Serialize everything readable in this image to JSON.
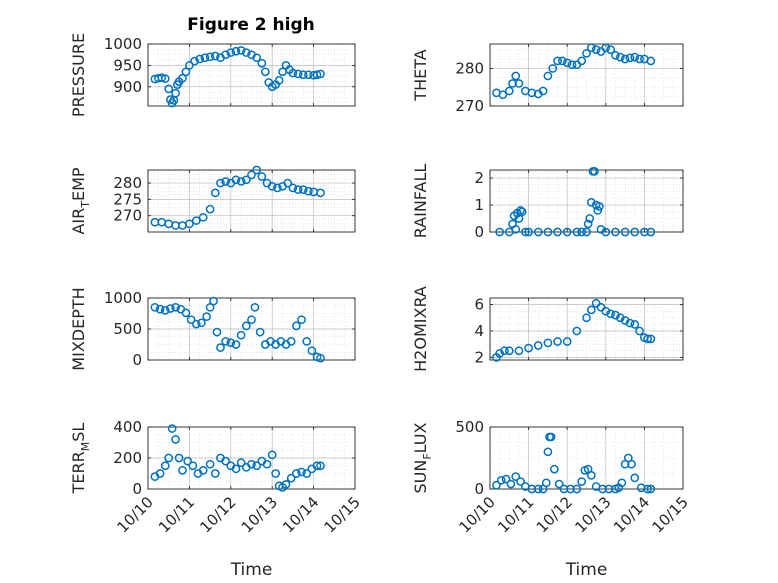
{
  "title": "Figure 2 high",
  "marker_color": "#0072BD",
  "chart_data": [
    {
      "type": "scatter",
      "ylabel": "PRESSURE",
      "xlim": [
        "10/10",
        "10/15"
      ],
      "ylim": [
        855,
        1000
      ],
      "yticks": [
        "900",
        "950",
        "1000"
      ],
      "xticks": [],
      "x": [
        "10/10 04:00",
        "10/10 06:00",
        "10/10 08:00",
        "10/10 10:00",
        "10/10 12:00",
        "10/10 13:00",
        "10/10 14:00",
        "10/10 15:00",
        "10/10 16:00",
        "10/10 17:00",
        "10/10 18:00",
        "10/10 20:00",
        "10/10 22:00",
        "10/11 00:00",
        "10/11 03:00",
        "10/11 06:00",
        "10/11 09:00",
        "10/11 12:00",
        "10/11 15:00",
        "10/11 18:00",
        "10/11 21:00",
        "10/12 00:00",
        "10/12 03:00",
        "10/12 06:00",
        "10/12 09:00",
        "10/12 12:00",
        "10/12 15:00",
        "10/12 18:00",
        "10/12 20:00",
        "10/12 22:00",
        "10/13 00:00",
        "10/13 02:00",
        "10/13 04:00",
        "10/13 06:00",
        "10/13 08:00",
        "10/13 10:00",
        "10/13 12:00",
        "10/13 15:00",
        "10/13 18:00",
        "10/13 21:00",
        "10/14 00:00",
        "10/14 02:00",
        "10/14 04:00"
      ],
      "y": [
        918,
        920,
        921,
        919,
        895,
        870,
        862,
        868,
        885,
        905,
        912,
        920,
        935,
        950,
        960,
        965,
        968,
        970,
        972,
        968,
        975,
        980,
        983,
        985,
        980,
        975,
        968,
        955,
        935,
        910,
        900,
        905,
        915,
        935,
        950,
        940,
        932,
        930,
        928,
        928,
        927,
        928,
        930
      ]
    },
    {
      "type": "scatter",
      "ylabel": "THETA",
      "xlim": [
        "10/10",
        "10/15"
      ],
      "ylim": [
        270,
        286.5
      ],
      "yticks": [
        "270",
        "280"
      ],
      "xticks": [],
      "x": [
        "10/10 04:00",
        "10/10 08:00",
        "10/10 12:00",
        "10/10 14:00",
        "10/10 16:00",
        "10/10 18:00",
        "10/10 22:00",
        "10/11 02:00",
        "10/11 06:00",
        "10/11 09:00",
        "10/11 12:00",
        "10/11 15:00",
        "10/11 18:00",
        "10/11 21:00",
        "10/12 00:00",
        "10/12 03:00",
        "10/12 06:00",
        "10/12 09:00",
        "10/12 12:00",
        "10/12 15:00",
        "10/12 18:00",
        "10/12 21:00",
        "10/13 00:00",
        "10/13 03:00",
        "10/13 06:00",
        "10/13 09:00",
        "10/13 12:00",
        "10/13 15:00",
        "10/13 18:00",
        "10/13 21:00",
        "10/14 00:00",
        "10/14 04:00"
      ],
      "y": [
        273.5,
        273,
        274,
        276,
        278,
        276,
        274,
        273.5,
        273.2,
        274,
        278,
        280,
        282,
        282,
        281.5,
        281,
        281,
        282,
        284,
        285.5,
        285,
        284.5,
        285.5,
        285,
        283.5,
        283,
        282.5,
        282.8,
        283,
        282.5,
        282.5,
        282
      ]
    },
    {
      "type": "scatter",
      "ylabel": "AIR_TEMP",
      "xlim": [
        "10/10",
        "10/15"
      ],
      "ylim": [
        265,
        284
      ],
      "yticks": [
        "270",
        "275",
        "280"
      ],
      "xticks": [],
      "x": [
        "10/10 04:00",
        "10/10 08:00",
        "10/10 12:00",
        "10/10 16:00",
        "10/10 20:00",
        "10/11 00:00",
        "10/11 04:00",
        "10/11 08:00",
        "10/11 12:00",
        "10/11 15:00",
        "10/11 18:00",
        "10/11 21:00",
        "10/12 00:00",
        "10/12 03:00",
        "10/12 06:00",
        "10/12 09:00",
        "10/12 12:00",
        "10/12 15:00",
        "10/12 18:00",
        "10/12 21:00",
        "10/13 00:00",
        "10/13 03:00",
        "10/13 06:00",
        "10/13 09:00",
        "10/13 12:00",
        "10/13 15:00",
        "10/13 18:00",
        "10/13 21:00",
        "10/14 00:00",
        "10/14 04:00"
      ],
      "y": [
        268,
        268,
        267.5,
        267,
        267,
        267.5,
        268.5,
        269.5,
        272,
        277,
        280,
        280.5,
        280,
        281,
        280.5,
        281,
        282.5,
        284,
        282,
        280,
        279,
        278.5,
        279,
        280,
        278.5,
        278,
        278,
        277.5,
        277.3,
        277
      ]
    },
    {
      "type": "scatter",
      "ylabel": "RAINFALL",
      "xlim": [
        "10/10",
        "10/15"
      ],
      "ylim": [
        0,
        2.3
      ],
      "yticks": [
        "0",
        "1",
        "2"
      ],
      "xticks": [],
      "x": [
        "10/10 06:00",
        "10/10 12:00",
        "10/10 14:00",
        "10/10 15:00",
        "10/10 16:00",
        "10/10 17:00",
        "10/10 18:00",
        "10/10 19:00",
        "10/10 20:00",
        "10/10 22:00",
        "10/11 00:00",
        "10/11 06:00",
        "10/11 12:00",
        "10/11 18:00",
        "10/12 00:00",
        "10/12 06:00",
        "10/12 09:00",
        "10/12 12:00",
        "10/12 13:00",
        "10/12 14:00",
        "10/12 15:00",
        "10/12 16:00",
        "10/12 17:00",
        "10/12 18:00",
        "10/12 19:00",
        "10/12 20:00",
        "10/12 21:00",
        "10/13 00:00",
        "10/13 06:00",
        "10/13 12:00",
        "10/13 18:00",
        "10/14 00:00",
        "10/14 04:00"
      ],
      "y": [
        0,
        0,
        0.3,
        0.6,
        0.1,
        0.7,
        0.5,
        0.8,
        0.75,
        0,
        0,
        0,
        0,
        0,
        0,
        0,
        0,
        0,
        0.3,
        0.5,
        1.1,
        2.25,
        2.25,
        1.0,
        0.8,
        0.95,
        0.1,
        0,
        0,
        0,
        0,
        0,
        0
      ]
    },
    {
      "type": "scatter",
      "ylabel": "MIXDEPTH",
      "xlim": [
        "10/10",
        "10/15"
      ],
      "ylim": [
        0,
        1000
      ],
      "yticks": [
        "0",
        "500",
        "1000"
      ],
      "xticks": [],
      "x": [
        "10/10 04:00",
        "10/10 07:00",
        "10/10 10:00",
        "10/10 13:00",
        "10/10 16:00",
        "10/10 19:00",
        "10/10 22:00",
        "10/11 01:00",
        "10/11 04:00",
        "10/11 07:00",
        "10/11 10:00",
        "10/11 12:00",
        "10/11 14:00",
        "10/11 16:00",
        "10/11 18:00",
        "10/11 21:00",
        "10/12 00:00",
        "10/12 03:00",
        "10/12 06:00",
        "10/12 09:00",
        "10/12 12:00",
        "10/12 14:00",
        "10/12 17:00",
        "10/12 20:00",
        "10/12 23:00",
        "10/13 02:00",
        "10/13 05:00",
        "10/13 08:00",
        "10/13 11:00",
        "10/13 14:00",
        "10/13 17:00",
        "10/13 20:00",
        "10/13 23:00",
        "10/14 02:00",
        "10/14 04:00"
      ],
      "y": [
        850,
        820,
        800,
        830,
        850,
        820,
        760,
        650,
        580,
        600,
        700,
        850,
        950,
        450,
        200,
        300,
        280,
        250,
        400,
        550,
        650,
        850,
        450,
        250,
        300,
        250,
        300,
        250,
        300,
        550,
        650,
        300,
        150,
        50,
        30
      ]
    },
    {
      "type": "scatter",
      "ylabel": "H2OMIXRA",
      "xlim": [
        "10/10",
        "10/15"
      ],
      "ylim": [
        1.8,
        6.5
      ],
      "yticks": [
        "2",
        "4",
        "6"
      ],
      "xticks": [],
      "x": [
        "10/10 04:00",
        "10/10 06:00",
        "10/10 09:00",
        "10/10 12:00",
        "10/10 18:00",
        "10/11 00:00",
        "10/11 06:00",
        "10/11 12:00",
        "10/11 18:00",
        "10/12 00:00",
        "10/12 06:00",
        "10/12 12:00",
        "10/12 15:00",
        "10/12 18:00",
        "10/12 21:00",
        "10/13 00:00",
        "10/13 03:00",
        "10/13 06:00",
        "10/13 09:00",
        "10/13 12:00",
        "10/13 15:00",
        "10/13 18:00",
        "10/13 21:00",
        "10/14 00:00",
        "10/14 02:00",
        "10/14 04:00"
      ],
      "y": [
        2.0,
        2.3,
        2.5,
        2.5,
        2.5,
        2.7,
        2.9,
        3.1,
        3.2,
        3.2,
        4.0,
        5.0,
        5.6,
        6.1,
        5.8,
        5.5,
        5.3,
        5.2,
        5.0,
        4.8,
        4.6,
        4.5,
        4.0,
        3.5,
        3.4,
        3.4
      ]
    },
    {
      "type": "scatter",
      "ylabel": "TERR_MSL",
      "xlim": [
        "10/10",
        "10/15"
      ],
      "ylim": [
        0,
        400
      ],
      "yticks": [
        "0",
        "200",
        "400"
      ],
      "xticks": [
        "10/10",
        "10/11",
        "10/12",
        "10/13",
        "10/14",
        "10/15"
      ],
      "xlabel": "Time",
      "x": [
        "10/10 04:00",
        "10/10 07:00",
        "10/10 10:00",
        "10/10 12:00",
        "10/10 14:00",
        "10/10 16:00",
        "10/10 18:00",
        "10/10 20:00",
        "10/10 23:00",
        "10/11 02:00",
        "10/11 05:00",
        "10/11 08:00",
        "10/11 12:00",
        "10/11 15:00",
        "10/11 18:00",
        "10/11 21:00",
        "10/12 00:00",
        "10/12 03:00",
        "10/12 06:00",
        "10/12 09:00",
        "10/12 12:00",
        "10/12 15:00",
        "10/12 18:00",
        "10/12 21:00",
        "10/13 00:00",
        "10/13 02:00",
        "10/13 04:00",
        "10/13 06:00",
        "10/13 08:00",
        "10/13 11:00",
        "10/13 14:00",
        "10/13 17:00",
        "10/13 20:00",
        "10/13 23:00",
        "10/14 02:00",
        "10/14 04:00"
      ],
      "y": [
        80,
        100,
        150,
        200,
        390,
        320,
        200,
        120,
        180,
        150,
        100,
        120,
        160,
        100,
        200,
        180,
        150,
        130,
        170,
        140,
        160,
        150,
        180,
        160,
        220,
        100,
        20,
        10,
        30,
        70,
        100,
        110,
        100,
        130,
        150,
        150
      ]
    },
    {
      "type": "scatter",
      "ylabel": "SUN_FLUX",
      "xlim": [
        "10/10",
        "10/15"
      ],
      "ylim": [
        0,
        500
      ],
      "yticks": [
        "0",
        "500"
      ],
      "xticks": [
        "10/10",
        "10/11",
        "10/12",
        "10/13",
        "10/14",
        "10/15"
      ],
      "xlabel": "Time",
      "x": [
        "10/10 04:00",
        "10/10 07:00",
        "10/10 10:00",
        "10/10 13:00",
        "10/10 16:00",
        "10/10 19:00",
        "10/10 22:00",
        "10/11 02:00",
        "10/11 06:00",
        "10/11 09:00",
        "10/11 11:00",
        "10/11 12:00",
        "10/11 13:00",
        "10/11 14:00",
        "10/11 16:00",
        "10/11 19:00",
        "10/11 22:00",
        "10/12 02:00",
        "10/12 06:00",
        "10/12 09:00",
        "10/12 11:00",
        "10/12 13:00",
        "10/12 15:00",
        "10/12 18:00",
        "10/12 22:00",
        "10/13 02:00",
        "10/13 06:00",
        "10/13 08:00",
        "10/13 10:00",
        "10/13 12:00",
        "10/13 14:00",
        "10/13 16:00",
        "10/13 18:00",
        "10/13 22:00",
        "10/14 02:00",
        "10/14 04:00"
      ],
      "y": [
        30,
        70,
        80,
        40,
        100,
        60,
        20,
        0,
        0,
        0,
        50,
        300,
        420,
        420,
        160,
        40,
        0,
        0,
        0,
        60,
        150,
        160,
        110,
        20,
        0,
        0,
        0,
        10,
        50,
        200,
        250,
        200,
        90,
        10,
        0,
        0
      ]
    }
  ]
}
